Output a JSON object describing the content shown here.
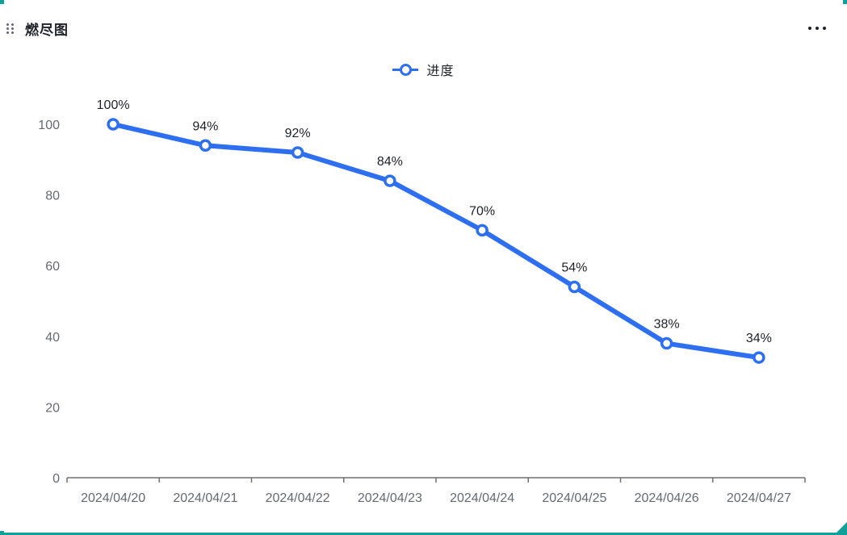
{
  "widget": {
    "title": "燃尽图",
    "selection_color": "#0FA09A"
  },
  "header": {
    "drag_icon": "drag-handle-icon",
    "more_icon": "ellipsis-icon"
  },
  "legend": {
    "label": "进度",
    "color": "#2E6EF0"
  },
  "chart_data": {
    "type": "line",
    "title": "燃尽图",
    "x": [
      "2024/04/20",
      "2024/04/21",
      "2024/04/22",
      "2024/04/23",
      "2024/04/24",
      "2024/04/25",
      "2024/04/26",
      "2024/04/27"
    ],
    "series": [
      {
        "name": "进度",
        "values": [
          100,
          94,
          92,
          84,
          70,
          54,
          38,
          34
        ],
        "labels": [
          "100%",
          "94%",
          "92%",
          "84%",
          "70%",
          "54%",
          "38%",
          "34%"
        ],
        "color": "#2E6EF0",
        "marker": "hollow-circle"
      }
    ],
    "xlabel": "",
    "ylabel": "",
    "ylim": [
      0,
      100
    ],
    "yticks": [
      0,
      20,
      40,
      60,
      80,
      100
    ],
    "grid": false,
    "legend_position": "top",
    "axis_color": "#6E7079"
  }
}
